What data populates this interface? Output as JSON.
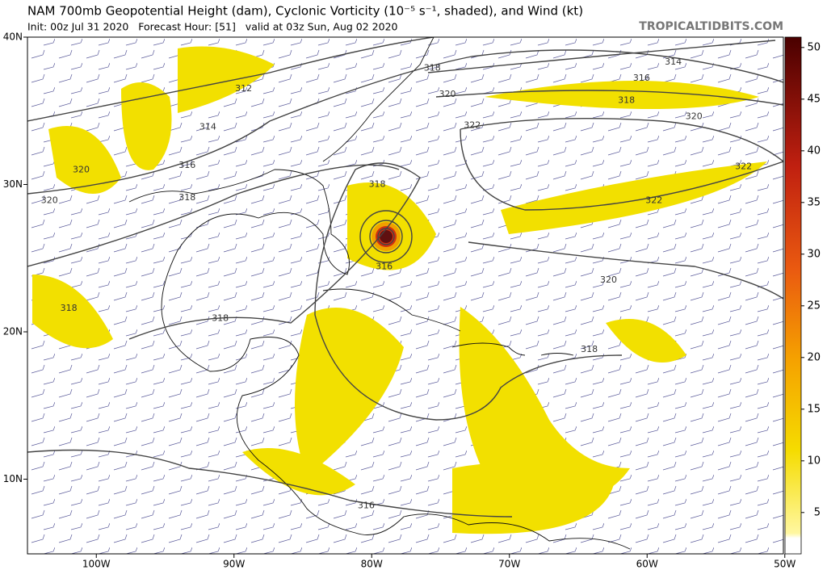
{
  "header": {
    "title": "NAM 700mb Geopotential Height (dam), Cyclonic Vorticity (10⁻⁵ s⁻¹, shaded), and Wind (kt)",
    "subtitle": "Init: 00z Jul 31 2020   Forecast Hour: [51]   valid at 03z Sun, Aug 02 2020",
    "watermark": "TROPICALTIDBITS.COM"
  },
  "map": {
    "lon_ticks": [
      {
        "value": -100,
        "label": "100W"
      },
      {
        "value": -90,
        "label": "90W"
      },
      {
        "value": -80,
        "label": "80W"
      },
      {
        "value": -70,
        "label": "70W"
      },
      {
        "value": -60,
        "label": "60W"
      },
      {
        "value": -50,
        "label": "50W"
      }
    ],
    "lat_ticks": [
      {
        "value": 40,
        "label": "40N"
      },
      {
        "value": 30,
        "label": "30N"
      },
      {
        "value": 20,
        "label": "20N"
      },
      {
        "value": 10,
        "label": "10N"
      }
    ],
    "contour_labels": [
      {
        "label": "314",
        "lon": -58.1,
        "lat": 38.3
      },
      {
        "label": "316",
        "lon": -60.4,
        "lat": 37.2
      },
      {
        "label": "318",
        "lon": -61.5,
        "lat": 35.7
      },
      {
        "label": "320",
        "lon": -56.6,
        "lat": 34.6
      },
      {
        "label": "322",
        "lon": -53.0,
        "lat": 31.2
      },
      {
        "label": "322",
        "lon": -59.5,
        "lat": 28.9
      },
      {
        "label": "320",
        "lon": -62.8,
        "lat": 23.5
      },
      {
        "label": "318",
        "lon": -64.2,
        "lat": 18.8
      },
      {
        "label": "318",
        "lon": -75.6,
        "lat": 37.9
      },
      {
        "label": "320",
        "lon": -74.5,
        "lat": 36.1
      },
      {
        "label": "322",
        "lon": -72.7,
        "lat": 34.0
      },
      {
        "label": "312",
        "lon": -89.3,
        "lat": 36.5
      },
      {
        "label": "314",
        "lon": -91.9,
        "lat": 33.9
      },
      {
        "label": "316",
        "lon": -93.4,
        "lat": 31.3
      },
      {
        "label": "318",
        "lon": -93.4,
        "lat": 29.1
      },
      {
        "label": "320",
        "lon": -101.1,
        "lat": 31.0
      },
      {
        "label": "320",
        "lon": -103.4,
        "lat": 28.9
      },
      {
        "label": "318",
        "lon": -79.6,
        "lat": 30.0
      },
      {
        "label": "316",
        "lon": -79.1,
        "lat": 24.4
      },
      {
        "label": "318",
        "lon": -91.0,
        "lat": 20.9
      },
      {
        "label": "318",
        "lon": -102.0,
        "lat": 21.6
      },
      {
        "label": "316",
        "lon": -80.4,
        "lat": 8.2
      }
    ]
  },
  "colorbar": {
    "lim": [
      1,
      51
    ],
    "ticks": [
      5,
      10,
      15,
      20,
      25,
      30,
      35,
      40,
      45,
      50
    ]
  }
}
